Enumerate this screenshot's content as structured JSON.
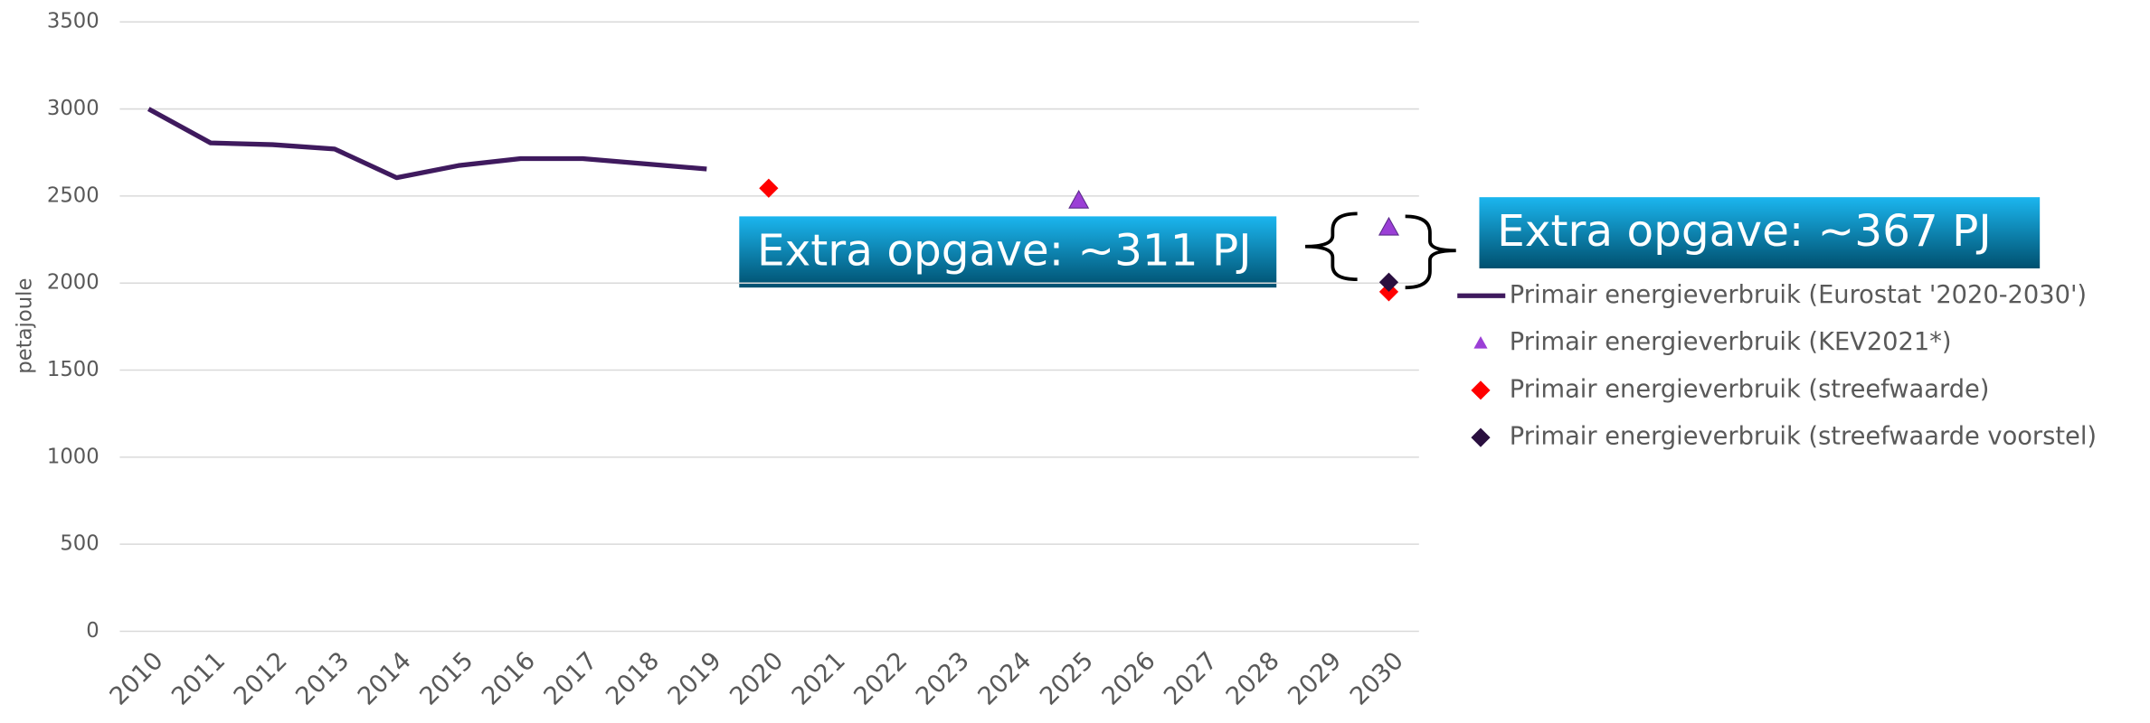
{
  "chart_data": {
    "type": "line",
    "y_label": "petajoule",
    "categories": [
      "2010",
      "2011",
      "2012",
      "2013",
      "2014",
      "2015",
      "2016",
      "2017",
      "2018",
      "2019",
      "2020",
      "2021",
      "2022",
      "2023",
      "2024",
      "2025",
      "2026",
      "2027",
      "2028",
      "2029",
      "2030"
    ],
    "series": [
      {
        "name": "Primair energieverbruik (Eurostat '2020-2030')",
        "color": "#3f1a5e",
        "style": "line",
        "values": [
          3000,
          2805,
          2795,
          2770,
          2605,
          2675,
          2715,
          2715,
          2685,
          2655,
          null,
          null,
          null,
          null,
          null,
          null,
          null,
          null,
          null,
          null,
          null
        ]
      },
      {
        "name": "Primair energieverbruik (KEV2021*)",
        "color": "#9b3fd6",
        "style": "triangle",
        "values": [
          null,
          null,
          null,
          null,
          null,
          null,
          null,
          null,
          null,
          null,
          null,
          null,
          null,
          null,
          null,
          2475,
          null,
          null,
          null,
          null,
          2320
        ]
      },
      {
        "name": "Primair energieverbruik (streefwaarde)",
        "color": "#ff0000",
        "style": "diamond",
        "values": [
          null,
          null,
          null,
          null,
          null,
          null,
          null,
          null,
          null,
          null,
          2545,
          null,
          null,
          null,
          null,
          null,
          null,
          null,
          null,
          null,
          1950
        ]
      },
      {
        "name": "Primair energieverbruik (streefwaarde voorstel)",
        "color": "#2a0f3f",
        "style": "diamond",
        "values": [
          null,
          null,
          null,
          null,
          null,
          null,
          null,
          null,
          null,
          null,
          null,
          null,
          null,
          null,
          null,
          null,
          null,
          null,
          null,
          null,
          2005
        ]
      }
    ],
    "ylim": [
      0,
      3500
    ],
    "yticks": [
      0,
      500,
      1000,
      1500,
      2000,
      2500,
      3000,
      3500
    ],
    "grid": true,
    "annotations": [
      "Extra opgave: ~311 PJ",
      "Extra opgave: ~367 PJ"
    ]
  }
}
